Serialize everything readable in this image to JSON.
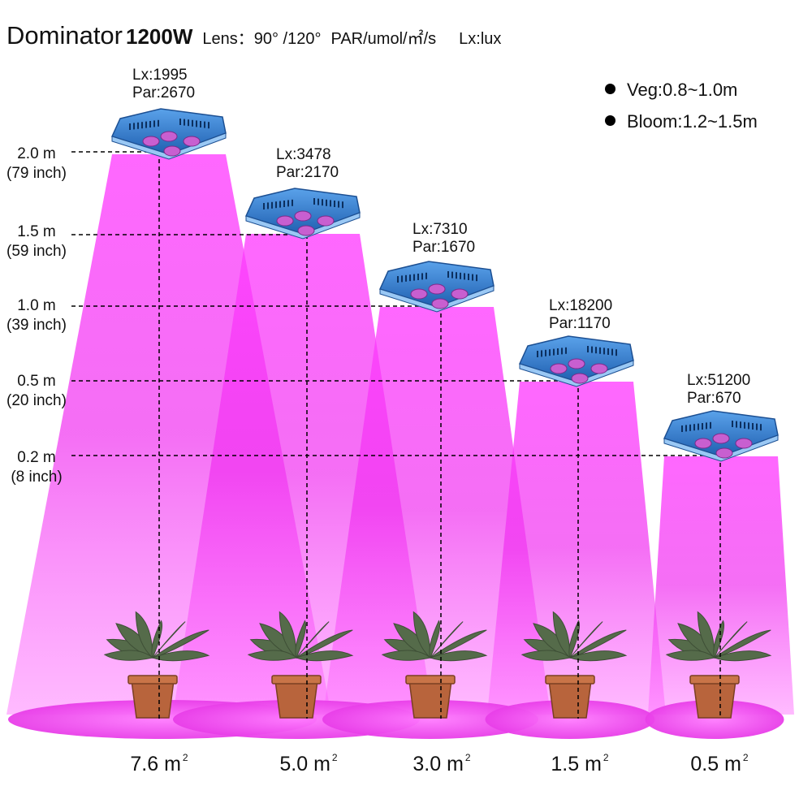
{
  "header": {
    "product": "Dominator",
    "wattage": "1200W",
    "lens": "Lens：90° /120°",
    "par_unit": "PAR/umol/㎡/s",
    "lux_unit": "Lx:lux"
  },
  "legend": [
    {
      "label": "Veg:0.8~1.0m"
    },
    {
      "label": "Bloom:1.2~1.5m"
    }
  ],
  "heights": [
    {
      "m": "2.0 m",
      "inch": "(79 inch)"
    },
    {
      "m": "1.5 m",
      "inch": "(59 inch)"
    },
    {
      "m": "1.0 m",
      "inch": "(39 inch)"
    },
    {
      "m": "0.5 m",
      "inch": "(20 inch)"
    },
    {
      "m": "0.2 m",
      "inch": "(8 inch)"
    }
  ],
  "readings": [
    {
      "lx": "Lx:1995",
      "par": "Par:2670"
    },
    {
      "lx": "Lx:3478",
      "par": "Par:2170"
    },
    {
      "lx": "Lx:7310",
      "par": "Par:1670"
    },
    {
      "lx": "Lx:18200",
      "par": "Par:1170"
    },
    {
      "lx": "Lx:51200",
      "par": "Par:670"
    }
  ],
  "coverage": [
    {
      "value": "7.6 m",
      "sup": "2"
    },
    {
      "value": "5.0 m",
      "sup": "2"
    },
    {
      "value": "3.0 m",
      "sup": "2"
    },
    {
      "value": "1.5 m",
      "sup": "2"
    },
    {
      "value": "0.5 m",
      "sup": "2"
    }
  ],
  "colors": {
    "beam": "#ee22ee",
    "beam_core": "#ff55ff",
    "lamp_body": "#2f7fd6",
    "lamp_dark": "#1c4f92",
    "led": "#c85fd0",
    "leaf": "#556b4a",
    "pot": "#b8643c"
  }
}
